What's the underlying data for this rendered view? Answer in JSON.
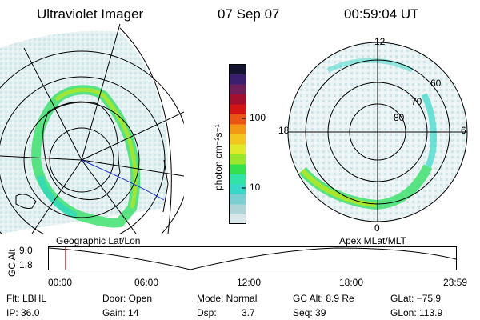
{
  "header": {
    "instrument": "Ultraviolet Imager",
    "date": "07 Sep 07",
    "time": "00:59:04 UT"
  },
  "colorbar": {
    "unit_label": "photon cm⁻²s⁻¹",
    "ticks": [
      "100",
      "10"
    ],
    "colors": [
      "#d8e6ea",
      "#aed4d8",
      "#7ccfd0",
      "#38d8c8",
      "#30e3a6",
      "#34e04f",
      "#9ae62a",
      "#e0ea2a",
      "#f2c61e",
      "#f39814",
      "#ea5414",
      "#d21414",
      "#a30f2e",
      "#6d1f5a",
      "#3a1f6e",
      "#141430"
    ]
  },
  "right_map": {
    "lat_labels": [
      "60",
      "70",
      "80"
    ],
    "mlt_labels": {
      "top": "12",
      "left": "18",
      "right": "6",
      "bottom": "0"
    }
  },
  "timeline": {
    "left_title": "Geographic Lat/Lon",
    "right_title": "Apex  MLat/MLT",
    "axis_label": "GC Alt",
    "y_ticks": [
      "9.0",
      "1.8"
    ],
    "x_ticks": [
      "00:00",
      "06:00",
      "12:00",
      "18:00",
      "23:59"
    ],
    "current_time_fraction": 0.041
  },
  "footer": {
    "row1": [
      "Flt: LBHL",
      "Door: Open",
      "Mode: Normal",
      "GC Alt: 8.9 Re",
      "GLat: −75.9"
    ],
    "row2": [
      "IP: 36.0",
      "Gain: 14",
      "Dsp:",
      "3.7",
      "Seq: 39",
      "GLon: 113.9"
    ]
  }
}
